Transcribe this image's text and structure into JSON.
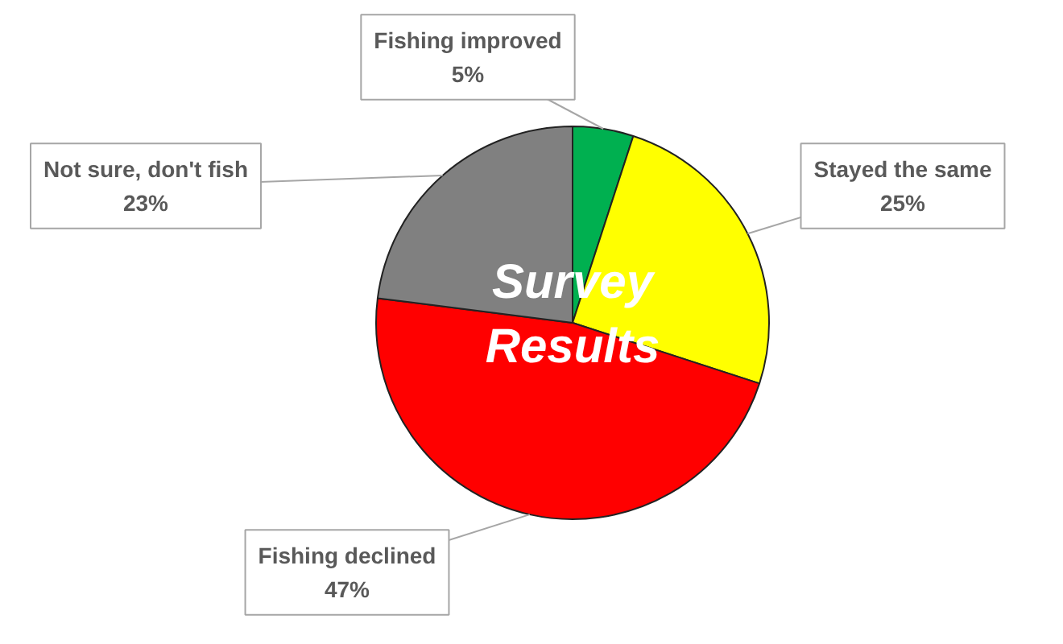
{
  "chart_data": {
    "type": "pie",
    "title": "Survey Results",
    "categories": [
      "Fishing improved",
      "Stayed the same",
      "Fishing declined",
      "Not sure, don't fish"
    ],
    "values": [
      5,
      25,
      47,
      23
    ],
    "colors": [
      "#00b050",
      "#ffff00",
      "#ff0000",
      "#808080"
    ],
    "value_labels": [
      "5%",
      "25%",
      "47%",
      "23%"
    ]
  }
}
